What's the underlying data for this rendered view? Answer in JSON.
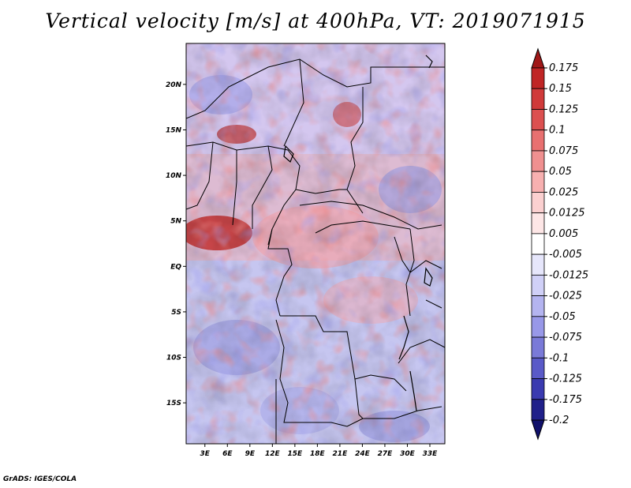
{
  "title": "Vertical velocity [m/s] at 400hPa, VT: 2019071915",
  "credit": "GrADS: IGES/COLA",
  "lat_labels": [
    "20N",
    "15N",
    "10N",
    "5N",
    "EQ",
    "5S",
    "10S",
    "15S"
  ],
  "lat_values": [
    20,
    15,
    10,
    5,
    0,
    -5,
    -10,
    -15
  ],
  "lon_labels": [
    "3E",
    "6E",
    "9E",
    "12E",
    "15E",
    "18E",
    "21E",
    "24E",
    "27E",
    "30E",
    "33E"
  ],
  "lon_values": [
    3,
    6,
    9,
    12,
    15,
    18,
    21,
    24,
    27,
    30,
    33
  ],
  "map_extent": {
    "lon": [
      0.5,
      35
    ],
    "lat": [
      -19.5,
      24.5
    ]
  },
  "colorbar": {
    "labels": [
      "0.175",
      "0.15",
      "0.125",
      "0.1",
      "0.075",
      "0.05",
      "0.025",
      "0.0125",
      "0.005",
      "-0.005",
      "-0.0125",
      "-0.025",
      "-0.05",
      "-0.075",
      "-0.1",
      "-0.125",
      "-0.175",
      "-0.2"
    ],
    "colors": [
      "#a01818",
      "#c02525",
      "#d03a3a",
      "#dc5050",
      "#e87070",
      "#f09090",
      "#f7b0b0",
      "#fbd0d0",
      "#fde6e6",
      "#ffffff",
      "#e6e6fb",
      "#d0d0f7",
      "#b4b4f0",
      "#9898e8",
      "#7a7ad8",
      "#5a5ac8",
      "#3a3ab0",
      "#20208a",
      "#10106a"
    ]
  }
}
